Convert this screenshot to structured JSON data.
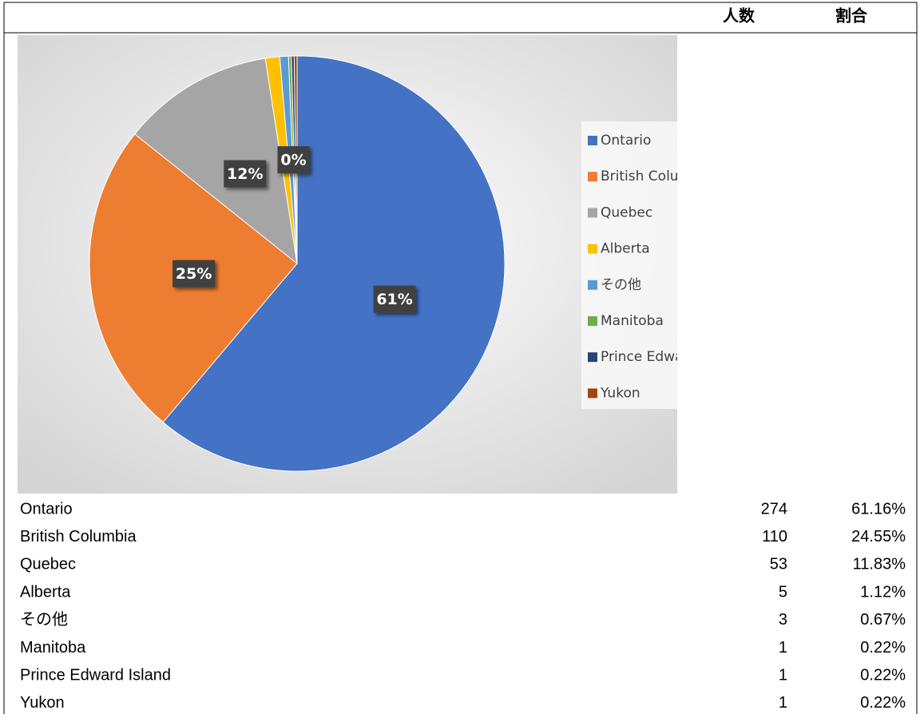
{
  "chart_data": {
    "type": "pie",
    "categories": [
      "Ontario",
      "British Columbia",
      "Quebec",
      "Alberta",
      "その他",
      "Manitoba",
      "Prince Edward Island",
      "Yukon"
    ],
    "values": [
      61.16,
      24.55,
      11.83,
      1.12,
      0.67,
      0.22,
      0.22,
      0.22
    ],
    "value_labels": [
      "61%",
      "25%",
      "12%",
      null,
      null,
      "0%",
      null,
      null
    ],
    "colors": [
      "#4472c4",
      "#ed7d31",
      "#a5a5a5",
      "#ffc000",
      "#5b9bd5",
      "#70ad47",
      "#264478",
      "#9e480e"
    ],
    "legend": "right"
  },
  "table": {
    "header": [
      "人数",
      "割合"
    ],
    "rows": [
      [
        "Ontario",
        274,
        "61.16%"
      ],
      [
        "British Columbia",
        110,
        "24.55%"
      ],
      [
        "Quebec",
        53,
        "11.83%"
      ],
      [
        "Alberta",
        5,
        "1.12%"
      ],
      [
        "その他",
        3,
        "0.67%"
      ],
      [
        "Manitoba",
        1,
        "0.22%"
      ],
      [
        "Prince Edward Island",
        1,
        "0.22%"
      ],
      [
        "Yukon",
        1,
        "0.22%"
      ]
    ]
  }
}
